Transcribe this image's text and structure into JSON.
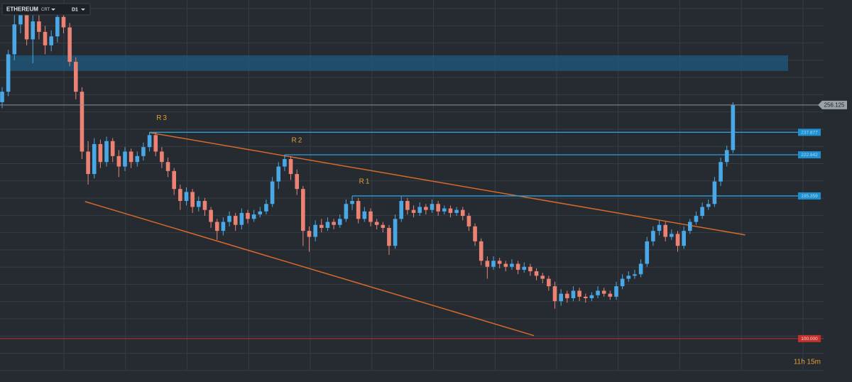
{
  "chart_data": {
    "type": "candlestick",
    "symbol": "ETHEREUM",
    "mode": "CRT",
    "timeframe": "D1",
    "countdown": "11h 15m",
    "ylim": [
      71,
      326.3
    ],
    "up_color": "#4aa8e6",
    "down_color": "#ec8273",
    "zone": {
      "from": 278.9,
      "to": 289.3,
      "color": "#1f5a80"
    },
    "levels": [
      {
        "name": "R3",
        "value": 237.877,
        "start": 24
      },
      {
        "name": "R2",
        "value": 222.842,
        "start": 46
      },
      {
        "name": "R1",
        "value": 195.359,
        "start": 57
      }
    ],
    "level_color": "#2a9fdc",
    "support": {
      "value": 100,
      "label": "100.000",
      "color": "#c4302b"
    },
    "trendlines": [
      {
        "from": [
          24,
          237.7
        ],
        "to": [
          121,
          169.3
        ],
        "color": "#d9692a"
      },
      {
        "from": [
          13.5,
          191.6
        ],
        "to": [
          86.6,
          102
        ],
        "color": "#d9692a"
      }
    ],
    "candles": [
      [
        258,
        268,
        254,
        265
      ],
      [
        265,
        293,
        262,
        290
      ],
      [
        290,
        322,
        286,
        310
      ],
      [
        310,
        324,
        304,
        318
      ],
      [
        318,
        321,
        296,
        300
      ],
      [
        300,
        316,
        284,
        312
      ],
      [
        312,
        316,
        300,
        305
      ],
      [
        305,
        309,
        290,
        296
      ],
      [
        296,
        306,
        292,
        302
      ],
      [
        302,
        320,
        298,
        315
      ],
      [
        315,
        319,
        304,
        308
      ],
      [
        308,
        311,
        282,
        285
      ],
      [
        285,
        288,
        260,
        265
      ],
      [
        265,
        268,
        220,
        225
      ],
      [
        225,
        232,
        203,
        210
      ],
      [
        210,
        234,
        207,
        230
      ],
      [
        230,
        233,
        214,
        218
      ],
      [
        218,
        235,
        215,
        232
      ],
      [
        232,
        234,
        218,
        222
      ],
      [
        222,
        226,
        208,
        215
      ],
      [
        215,
        228,
        212,
        225
      ],
      [
        225,
        227,
        214,
        218
      ],
      [
        218,
        225,
        215,
        222
      ],
      [
        222,
        231,
        219,
        228
      ],
      [
        228,
        237.877,
        225,
        236
      ],
      [
        236,
        238,
        222,
        225
      ],
      [
        225,
        228,
        214,
        218
      ],
      [
        218,
        221,
        208,
        212
      ],
      [
        212,
        214,
        196,
        200
      ],
      [
        200,
        203,
        186,
        192
      ],
      [
        192,
        201,
        189,
        198
      ],
      [
        198,
        200,
        184,
        188
      ],
      [
        188,
        195,
        185,
        192
      ],
      [
        192,
        194,
        182,
        186
      ],
      [
        186,
        188,
        174,
        178
      ],
      [
        178,
        180,
        166,
        172
      ],
      [
        172,
        181,
        169,
        178
      ],
      [
        178,
        185,
        175,
        182
      ],
      [
        182,
        184,
        172,
        176
      ],
      [
        176,
        187,
        173,
        184
      ],
      [
        184,
        186,
        177,
        180
      ],
      [
        180,
        186,
        178,
        183
      ],
      [
        183,
        188,
        181,
        185
      ],
      [
        185,
        193,
        183,
        190
      ],
      [
        190,
        208,
        188,
        205
      ],
      [
        205,
        218,
        200,
        215
      ],
      [
        215,
        222.842,
        212,
        220
      ],
      [
        220,
        222,
        206,
        210
      ],
      [
        210,
        213,
        196,
        200
      ],
      [
        200,
        202,
        162,
        172
      ],
      [
        172,
        175,
        158,
        168
      ],
      [
        168,
        179,
        165,
        176
      ],
      [
        176,
        180,
        171,
        174
      ],
      [
        174,
        181,
        172,
        178
      ],
      [
        178,
        180,
        173,
        176
      ],
      [
        176,
        183,
        174,
        180
      ],
      [
        180,
        193,
        178,
        190
      ],
      [
        190,
        195.359,
        186,
        192
      ],
      [
        192,
        194,
        177,
        180
      ],
      [
        180,
        188,
        178,
        185
      ],
      [
        185,
        187,
        175,
        178
      ],
      [
        178,
        180,
        173,
        176
      ],
      [
        176,
        178,
        171,
        174
      ],
      [
        174,
        176,
        156,
        162
      ],
      [
        162,
        183,
        160,
        180
      ],
      [
        180,
        195,
        178,
        192
      ],
      [
        192,
        194,
        183,
        186
      ],
      [
        186,
        189,
        181,
        184
      ],
      [
        184,
        191,
        182,
        188
      ],
      [
        188,
        190,
        183,
        186
      ],
      [
        186,
        193,
        184,
        190
      ],
      [
        190,
        192,
        182,
        185
      ],
      [
        185,
        189,
        183,
        187
      ],
      [
        187,
        189,
        181,
        184
      ],
      [
        184,
        188,
        182,
        186
      ],
      [
        186,
        188,
        179,
        182
      ],
      [
        182,
        184,
        172,
        175
      ],
      [
        175,
        177,
        162,
        165
      ],
      [
        165,
        167,
        149,
        152
      ],
      [
        152,
        155,
        140,
        148
      ],
      [
        148,
        155,
        146,
        152
      ],
      [
        152,
        154,
        147,
        150
      ],
      [
        150,
        152,
        145,
        148
      ],
      [
        148,
        153,
        146,
        150
      ],
      [
        150,
        152,
        143,
        146
      ],
      [
        146,
        151,
        144,
        148
      ],
      [
        148,
        150,
        142,
        145
      ],
      [
        145,
        147,
        139,
        142
      ],
      [
        142,
        144,
        137,
        140
      ],
      [
        140,
        142,
        132,
        135
      ],
      [
        135,
        138,
        120,
        125
      ],
      [
        125,
        133,
        122,
        130
      ],
      [
        130,
        132,
        124,
        127
      ],
      [
        127,
        135,
        125,
        132
      ],
      [
        132,
        134,
        125,
        128
      ],
      [
        128,
        130,
        124,
        127
      ],
      [
        127,
        131,
        125,
        129
      ],
      [
        129,
        135,
        127,
        132
      ],
      [
        132,
        134,
        128,
        130
      ],
      [
        130,
        132,
        126,
        128
      ],
      [
        128,
        138,
        126,
        135
      ],
      [
        135,
        143,
        133,
        140
      ],
      [
        140,
        145,
        138,
        142
      ],
      [
        142,
        146,
        140,
        143
      ],
      [
        143,
        153,
        141,
        150
      ],
      [
        150,
        168,
        148,
        165
      ],
      [
        165,
        175,
        162,
        172
      ],
      [
        172,
        179,
        169,
        176
      ],
      [
        176,
        178,
        165,
        168
      ],
      [
        168,
        173,
        166,
        170
      ],
      [
        170,
        172,
        158,
        162
      ],
      [
        162,
        175,
        160,
        172
      ],
      [
        172,
        180,
        170,
        178
      ],
      [
        178,
        185,
        176,
        182
      ],
      [
        182,
        191,
        180,
        188
      ],
      [
        188,
        193,
        186,
        190
      ],
      [
        190,
        208,
        188,
        205
      ],
      [
        205,
        221,
        202,
        218
      ],
      [
        218,
        229,
        215,
        226
      ],
      [
        226,
        258,
        224,
        256.125
      ]
    ]
  }
}
